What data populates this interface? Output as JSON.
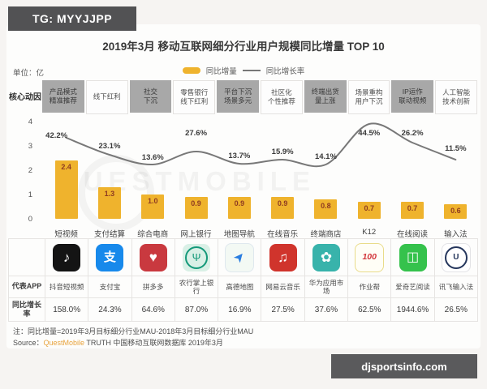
{
  "badges": {
    "tg": "TG: MYYJJPP",
    "site": "djsportsinfo.com"
  },
  "title": "2019年3月 移动互联网细分行业用户规模同比增量 TOP 10",
  "unit_label": "单位：亿",
  "legend": {
    "bar_label": "同比增量",
    "line_label": "同比增长率"
  },
  "drivers": {
    "row_label": "核心动因",
    "items": [
      {
        "lines": [
          "产品模式",
          "精准推荐"
        ],
        "highlight": true
      },
      {
        "lines": [
          "线下红利"
        ],
        "highlight": false
      },
      {
        "lines": [
          "社交",
          "下沉"
        ],
        "highlight": true
      },
      {
        "lines": [
          "零售银行",
          "线下红利"
        ],
        "highlight": false
      },
      {
        "lines": [
          "平台下沉",
          "场景多元"
        ],
        "highlight": true
      },
      {
        "lines": [
          "社区化",
          "个性推荐"
        ],
        "highlight": false
      },
      {
        "lines": [
          "终端出货",
          "量上涨"
        ],
        "highlight": true
      },
      {
        "lines": [
          "场景重构",
          "用户下沉"
        ],
        "highlight": false
      },
      {
        "lines": [
          "IP运作",
          "联动视频"
        ],
        "highlight": true
      },
      {
        "lines": [
          "人工智能",
          "技术创新"
        ],
        "highlight": false
      }
    ]
  },
  "chart_data": {
    "type": "bar+line",
    "title": "2019年3月 移动互联网细分行业用户规模同比增量 TOP 10",
    "unit": "亿",
    "categories": [
      "短视频",
      "支付结算",
      "综合电商",
      "网上银行",
      "地图导航",
      "在线音乐",
      "终端商店",
      "K12",
      "在线阅读",
      "输入法"
    ],
    "series": [
      {
        "name": "同比增量",
        "type": "bar",
        "unit": "亿",
        "values": [
          2.4,
          1.3,
          1.0,
          0.9,
          0.9,
          0.9,
          0.8,
          0.7,
          0.7,
          0.6
        ]
      },
      {
        "name": "同比增长率",
        "type": "line",
        "unit": "%",
        "values": [
          42.2,
          23.1,
          13.6,
          27.6,
          13.7,
          15.9,
          14.1,
          44.5,
          26.2,
          11.5
        ],
        "labels": [
          "42.2%",
          "23.1%",
          "13.6%",
          "27.6%",
          "13.7%",
          "15.9%",
          "14.1%",
          "44.5%",
          "26.2%",
          "11.5%"
        ]
      }
    ],
    "ylim": [
      0,
      4
    ],
    "yticks": [
      0,
      1,
      2,
      3,
      4
    ],
    "legend_position": "top",
    "grid": false,
    "watermark": "QUESTMOBILE"
  },
  "app_table": {
    "app_row_label": "代表APP",
    "growth_row_label": "同比增长率",
    "apps": [
      {
        "name": "抖音短视频",
        "growth": "158.0%",
        "icon": {
          "id": "douyin-icon",
          "bg": "#141414",
          "glyph": "♪",
          "color": "#ffffff"
        }
      },
      {
        "name": "支付宝",
        "growth": "24.3%",
        "icon": {
          "id": "alipay-icon",
          "bg": "#1789eb",
          "glyph": "支",
          "color": "#ffffff"
        }
      },
      {
        "name": "拼多多",
        "growth": "64.6%",
        "icon": {
          "id": "pinduoduo-icon",
          "bg": "#c9393f",
          "glyph": "♥",
          "color": "#ffffff"
        }
      },
      {
        "name": "农行掌上银行",
        "growth": "87.0%",
        "icon": {
          "id": "abc-bank-icon",
          "bg": "#d9f0e6",
          "glyph": "Ψ",
          "color": "#15997a",
          "ring": "#15997a"
        }
      },
      {
        "name": "高德地图",
        "growth": "16.9%",
        "icon": {
          "id": "amap-icon",
          "bg": "#f3f9f4",
          "glyph": "➤",
          "color": "#2a7de0",
          "border": "#dfe8ee"
        }
      },
      {
        "name": "网易云音乐",
        "growth": "27.5%",
        "icon": {
          "id": "netease-music-icon",
          "bg": "#d0342c",
          "glyph": "♫",
          "color": "#ffffff"
        }
      },
      {
        "name": "华为应用市场",
        "growth": "37.6%",
        "icon": {
          "id": "huawei-appmarket-icon",
          "bg": "#38b3ab",
          "glyph": "✿",
          "color": "#ffffff"
        }
      },
      {
        "name": "作业帮",
        "growth": "62.5%",
        "icon": {
          "id": "zuoyebang-icon",
          "bg": "#fffef6",
          "glyph": "100",
          "color": "#d3363b",
          "border": "#e9dc8a"
        }
      },
      {
        "name": "爱奇艺阅读",
        "growth": "1944.6%",
        "icon": {
          "id": "iqiyi-reading-icon",
          "bg": "#35c24c",
          "glyph": "◫",
          "color": "#ffffff"
        }
      },
      {
        "name": "讯飞输入法",
        "growth": "26.5%",
        "icon": {
          "id": "iflytek-input-icon",
          "bg": "#ffffff",
          "glyph": "U",
          "color": "#25365c",
          "ring": "#25365c",
          "border": "#e3e3e6"
        }
      }
    ]
  },
  "notes": {
    "note": "注：同比增量=2019年3月目标细分行业MAU-2018年3月目标细分行业MAU",
    "source_prefix": "Source：",
    "source_brand": "QuestMobile",
    "source_rest": " TRUTH 中国移动互联网数据库 2019年3月"
  },
  "colors": {
    "bar": "#efb32d",
    "bar_value_text": "#8e3b21",
    "line": "#787878",
    "driver_highlight_bg": "#a8a8a8",
    "badge_bg": "#525254",
    "brand_orange": "#e8a33d"
  }
}
